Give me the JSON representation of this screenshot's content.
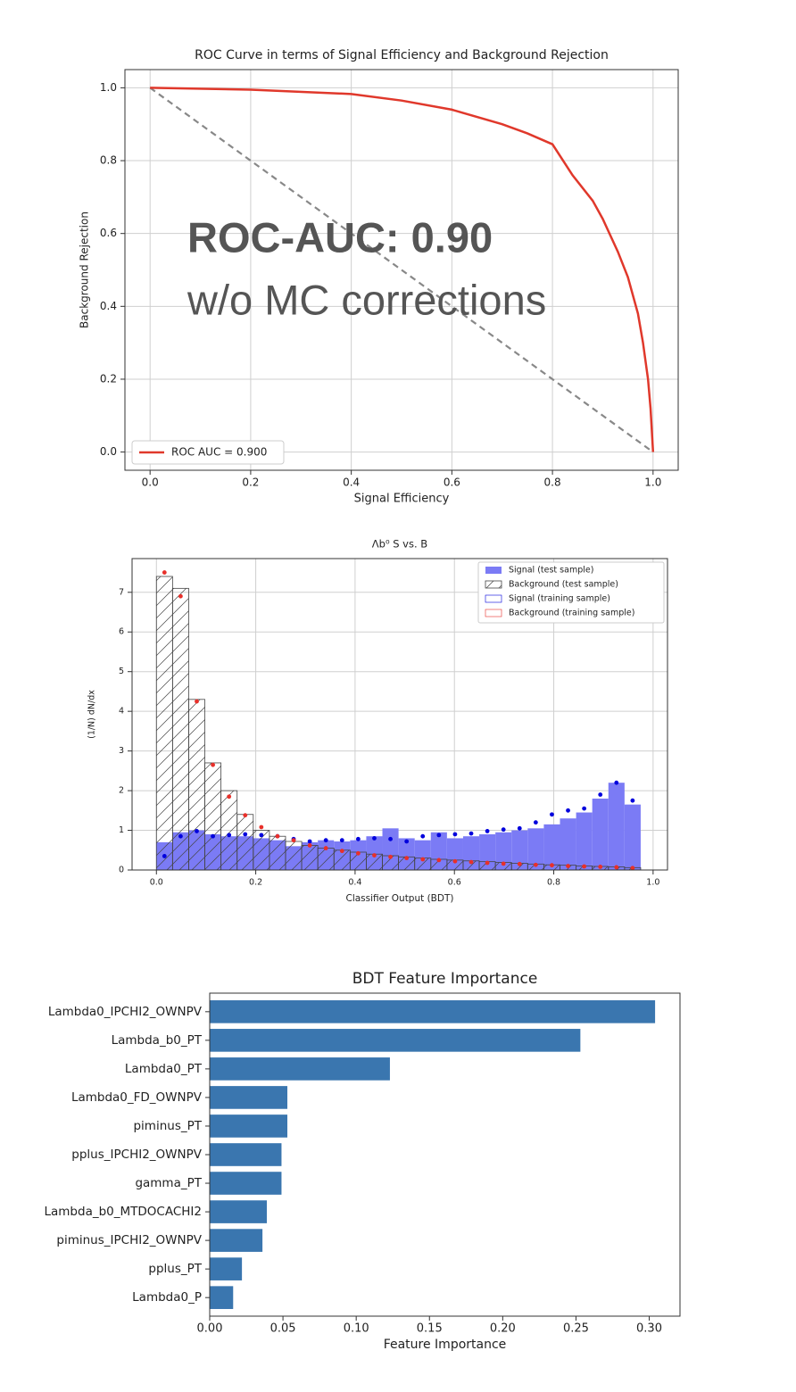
{
  "chart_data": [
    {
      "type": "line",
      "title": "ROC Curve in terms of Signal Efficiency and Background Rejection",
      "xlabel": "Signal Efficiency",
      "ylabel": "Background Rejection",
      "annotations": [
        "ROC-AUC: 0.90",
        "w/o MC corrections"
      ],
      "x": [
        0,
        0.2,
        0.4,
        0.5,
        0.6,
        0.7,
        0.75,
        0.8,
        0.84,
        0.88,
        0.9,
        0.93,
        0.95,
        0.97,
        0.98,
        0.99,
        0.995,
        1.0
      ],
      "series": [
        {
          "name": "ROC AUC = 0.900",
          "color": "#e0382b",
          "values": [
            1.0,
            0.995,
            0.983,
            0.965,
            0.94,
            0.9,
            0.875,
            0.845,
            0.76,
            0.69,
            0.64,
            0.55,
            0.48,
            0.38,
            0.3,
            0.2,
            0.12,
            0.0
          ]
        }
      ],
      "xlim": [
        -0.05,
        1.05
      ],
      "ylim": [
        -0.05,
        1.05
      ],
      "xticks": [
        {
          "value": 0,
          "label": "0.0"
        },
        0.2,
        0.4,
        0.6,
        0.8,
        {
          "value": 1,
          "label": "1.0"
        }
      ],
      "yticks": [
        {
          "value": 0,
          "label": "0.0"
        },
        0.2,
        0.4,
        0.6,
        0.8,
        {
          "value": 1,
          "label": "1.0"
        }
      ],
      "grid": true,
      "legend": "lower left"
    },
    {
      "type": "histogram",
      "title": "Λb⁰ S vs. B",
      "xlabel": "Classifier Output (BDT)",
      "ylabel": "(1/N) dN/dx",
      "bins": [
        0,
        0.0325,
        0.065,
        0.0975,
        0.13,
        0.1625,
        0.195,
        0.2275,
        0.26,
        0.2925,
        0.325,
        0.3575,
        0.39,
        0.4225,
        0.455,
        0.4875,
        0.52,
        0.5525,
        0.585,
        0.6175,
        0.65,
        0.6825,
        0.715,
        0.7475,
        0.78,
        0.8125,
        0.845,
        0.8775,
        0.91,
        0.9425,
        0.975
      ],
      "series": [
        {
          "name": "Signal (test sample)",
          "color": "#7b7bf5",
          "values": [
            0.7,
            0.95,
            1.0,
            0.9,
            0.85,
            0.85,
            0.8,
            0.75,
            0.6,
            0.7,
            0.75,
            0.72,
            0.75,
            0.85,
            1.05,
            0.8,
            0.75,
            0.95,
            0.8,
            0.85,
            0.9,
            0.95,
            1.0,
            1.05,
            1.15,
            1.3,
            1.45,
            1.8,
            2.2,
            1.65
          ]
        },
        {
          "name": "Background (test sample)",
          "color": "#444444",
          "values": [
            7.4,
            7.1,
            4.3,
            2.7,
            2.0,
            1.4,
            1.0,
            0.85,
            0.72,
            0.62,
            0.55,
            0.5,
            0.45,
            0.4,
            0.36,
            0.33,
            0.3,
            0.27,
            0.25,
            0.23,
            0.21,
            0.19,
            0.17,
            0.15,
            0.13,
            0.12,
            0.1,
            0.09,
            0.08,
            0.06
          ]
        },
        {
          "name": "Signal (training sample)",
          "color": "#0000dd",
          "values": [
            0.35,
            0.85,
            0.98,
            0.85,
            0.88,
            0.9,
            0.88,
            0.85,
            0.78,
            0.72,
            0.75,
            0.75,
            0.78,
            0.8,
            0.78,
            0.72,
            0.85,
            0.88,
            0.9,
            0.92,
            0.98,
            1.02,
            1.05,
            1.2,
            1.4,
            1.5,
            1.55,
            1.9,
            2.2,
            1.75
          ]
        },
        {
          "name": "Background (training sample)",
          "color": "#e8302a",
          "values": [
            7.5,
            6.9,
            4.25,
            2.65,
            1.85,
            1.38,
            1.08,
            0.85,
            0.75,
            0.62,
            0.55,
            0.48,
            0.42,
            0.37,
            0.33,
            0.3,
            0.27,
            0.25,
            0.22,
            0.2,
            0.18,
            0.16,
            0.15,
            0.13,
            0.12,
            0.1,
            0.09,
            0.08,
            0.07,
            0.05
          ]
        }
      ],
      "xlim": [
        -0.049,
        1.029
      ],
      "ylim": [
        0,
        7.85
      ],
      "xticks": [
        {
          "value": 0,
          "label": "0.0"
        },
        0.2,
        0.4,
        0.6,
        0.8,
        {
          "value": 1,
          "label": "1.0"
        }
      ],
      "yticks": [
        0,
        1,
        2,
        3,
        4,
        5,
        6,
        7
      ],
      "grid": true,
      "legend": "upper right"
    },
    {
      "type": "barh",
      "title": "BDT Feature Importance",
      "xlabel": "Feature Importance",
      "categories": [
        "Lambda0_IPCHI2_OWNPV",
        "Lambda_b0_PT",
        "Lambda0_PT",
        "Lambda0_FD_OWNPV",
        "piminus_PT",
        "pplus_IPCHI2_OWNPV",
        "gamma_PT",
        "Lambda_b0_MTDOCACHI2",
        "piminus_IPCHI2_OWNPV",
        "pplus_PT",
        "Lambda0_P"
      ],
      "values": [
        0.304,
        0.253,
        0.123,
        0.053,
        0.053,
        0.049,
        0.049,
        0.039,
        0.036,
        0.022,
        0.016
      ],
      "color": "#3a76af",
      "xlim": [
        0,
        0.321
      ],
      "xticks": [
        {
          "value": 0,
          "label": "0.00"
        },
        {
          "value": 0.05,
          "label": "0.05"
        },
        {
          "value": 0.1,
          "label": "0.10"
        },
        {
          "value": 0.15,
          "label": "0.15"
        },
        {
          "value": 0.2,
          "label": "0.20"
        },
        {
          "value": 0.25,
          "label": "0.25"
        },
        {
          "value": 0.3,
          "label": "0.30"
        }
      ],
      "grid": false
    }
  ]
}
